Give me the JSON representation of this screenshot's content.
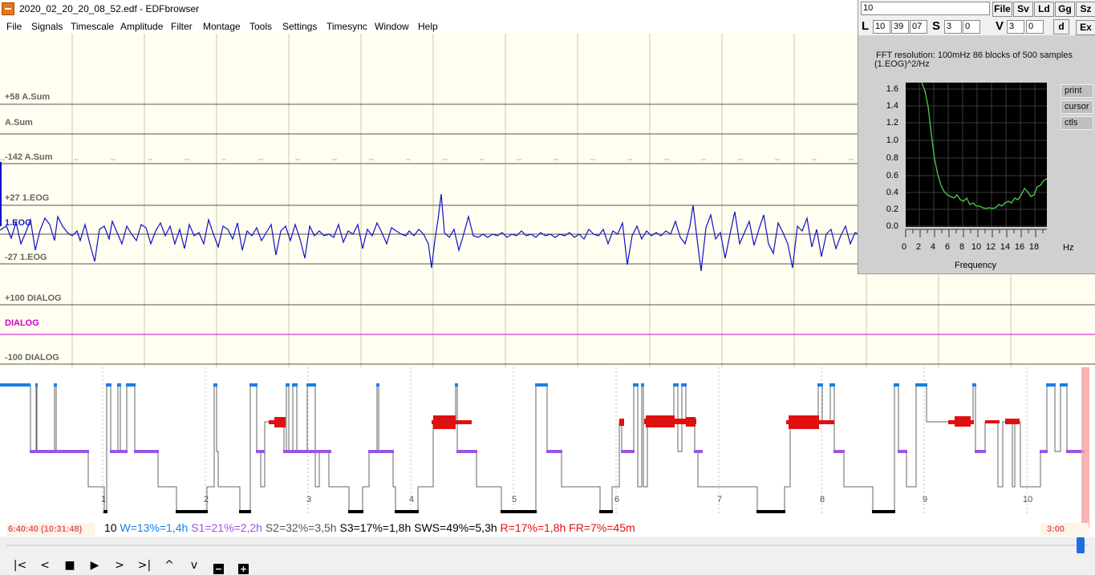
{
  "window": {
    "title": "2020_02_20_20_08_52.edf - EDFbrowser"
  },
  "menu": [
    "File",
    "Signals",
    "Timescale",
    "Amplitude",
    "Filter",
    "Montage",
    "Tools",
    "Settings",
    "Timesync",
    "Window",
    "Help"
  ],
  "signals": {
    "asum_top": "+58 A.Sum",
    "asum": "A.Sum",
    "asum_bottom": "-142 A.Sum",
    "eog_top": "+27 1.EOG",
    "eog": "1.EOG",
    "eog_bottom": "-27 1.EOG",
    "dialog_top": "+100 DIALOG",
    "dialog": "DIALOG",
    "dialog_bottom": "-100 DIALOG"
  },
  "hypnogram": {
    "hour_labels": [
      "1",
      "2",
      "3",
      "4",
      "5",
      "6",
      "7",
      "8",
      "9",
      "10"
    ]
  },
  "status": {
    "time": "6:40:40 (10:31:48)",
    "index": "10",
    "w": "W=13%=1,4h",
    "s1": "S1=21%=2,2h",
    "s2": "S2=32%=3,5h",
    "s3": "S3=17%=1,8h",
    "sws": "SWS=49%=5,3h",
    "r": "R=17%=1,8h",
    "fr": "FR=7%=45m",
    "right_time": "3:00"
  },
  "colors": {
    "wake": "#1a7fe6",
    "s1": "#9a55e0",
    "s2": "#555555",
    "s3": "#000000",
    "rem": "#e01010",
    "eog": "#1010c8",
    "dialog": "#cc00cc"
  },
  "fft": {
    "input_value": "10",
    "buttons": [
      "File",
      "Sv",
      "Ld",
      "Gg",
      "Sz"
    ],
    "d_button": "d",
    "ex_button": "Ex",
    "l_label": "L",
    "l_values": [
      "10",
      "39",
      "07"
    ],
    "s_label": "S",
    "s_values": [
      "3",
      "0"
    ],
    "v_label": "V",
    "v_values": [
      "3",
      "0"
    ],
    "resolution_text": "FFT resolution: 100mHz   86 blocks of 500 samples",
    "unit_text": "(1.EOG)^2/Hz",
    "side_buttons": [
      "print",
      "cursor",
      "ctls"
    ],
    "y_ticks": [
      "1.6",
      "1.4",
      "1.2",
      "1.0",
      "0.8",
      "0.6",
      "0.4",
      "0.2",
      "0.0"
    ],
    "x_ticks": [
      "0",
      "2",
      "4",
      "6",
      "8",
      "10",
      "12",
      "14",
      "16",
      "18"
    ],
    "x_unit": "Hz",
    "x_label": "Frequency"
  }
}
